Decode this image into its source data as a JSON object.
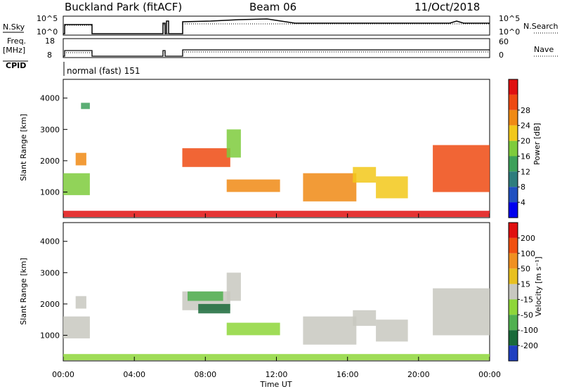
{
  "header": {
    "station": "Buckland Park (fitACF)",
    "beam": "Beam 06",
    "date": "11/Oct/2018"
  },
  "top_panels": {
    "nsky": {
      "left_label": "N.Sky",
      "left_ticks": [
        "10^5",
        "10^0"
      ],
      "right_ticks": [
        "10^5",
        "10^0"
      ],
      "right_label": "N.Search"
    },
    "freq": {
      "left_label_line1": "Freq.",
      "left_label_line2": "[MHz]",
      "left_ticks": [
        "18",
        "8"
      ],
      "right_ticks": [
        "60",
        "0"
      ],
      "right_label": "Nave"
    },
    "cpid": {
      "label": "CPID",
      "mode": "normal (fast) 151"
    }
  },
  "colors": {
    "power_scale": [
      "#0000ee",
      "#2050c0",
      "#2e7d7d",
      "#3da05a",
      "#7ecb3c",
      "#f2c81a",
      "#f08a14",
      "#ee4a12",
      "#e01010"
    ],
    "velocity_scale": [
      "#2040c0",
      "#1a6a3a",
      "#50b050",
      "#8ed63a",
      "#c8c8c0",
      "#e8c020",
      "#f09020",
      "#f05010",
      "#e01010"
    ]
  },
  "chart_data": [
    {
      "type": "heatmap",
      "name_label": "power-panel",
      "xlabel": "",
      "ylabel": "Slant Range [km]",
      "y_ticks": [
        "1000",
        "2000",
        "3000",
        "4000"
      ],
      "ylim": [
        180,
        4600
      ],
      "colorbar_label": "Power [dB]",
      "colorbar_ticks": [
        "4",
        "8",
        "12",
        "16",
        "20",
        "24",
        "28"
      ],
      "regions": [
        {
          "t0": 0.0,
          "t1": 1.5,
          "r0": 900,
          "r1": 1600,
          "level": 4
        },
        {
          "t0": 0.7,
          "t1": 1.3,
          "r0": 1850,
          "r1": 2250,
          "level": 6
        },
        {
          "t0": 1.0,
          "t1": 1.5,
          "r0": 3650,
          "r1": 3850,
          "level": 3
        },
        {
          "t0": 6.7,
          "t1": 9.4,
          "r0": 1800,
          "r1": 2400,
          "level": 7
        },
        {
          "t0": 9.2,
          "t1": 10.0,
          "r0": 2100,
          "r1": 3000,
          "level": 4
        },
        {
          "t0": 9.2,
          "t1": 12.2,
          "r0": 1000,
          "r1": 1400,
          "level": 6
        },
        {
          "t0": 13.5,
          "t1": 16.5,
          "r0": 700,
          "r1": 1600,
          "level": 6
        },
        {
          "t0": 16.3,
          "t1": 17.6,
          "r0": 1300,
          "r1": 1800,
          "level": 5
        },
        {
          "t0": 17.6,
          "t1": 19.4,
          "r0": 800,
          "r1": 1500,
          "level": 5
        },
        {
          "t0": 20.8,
          "t1": 24.0,
          "r0": 1000,
          "r1": 2500,
          "level": 7
        },
        {
          "t0": 0.0,
          "t1": 24.0,
          "r0": 200,
          "r1": 400,
          "level": 8
        }
      ]
    },
    {
      "type": "heatmap",
      "name_label": "velocity-panel",
      "xlabel": "Time UT",
      "ylabel": "Slant Range [km]",
      "y_ticks": [
        "1000",
        "2000",
        "3000",
        "4000"
      ],
      "ylim": [
        180,
        4600
      ],
      "x_ticks": [
        "00:00",
        "04:00",
        "08:00",
        "12:00",
        "16:00",
        "20:00",
        "00:00"
      ],
      "colorbar_label": "Velocity [m s⁻¹]",
      "colorbar_ticks": [
        "200",
        "100",
        "50",
        "15",
        "-15",
        "-50",
        "-100",
        "-200"
      ],
      "regions": [
        {
          "t0": 0.0,
          "t1": 1.5,
          "r0": 900,
          "r1": 1600,
          "level": 4
        },
        {
          "t0": 0.7,
          "t1": 1.3,
          "r0": 1850,
          "r1": 2250,
          "level": 4
        },
        {
          "t0": 6.7,
          "t1": 9.4,
          "r0": 1800,
          "r1": 2400,
          "level": 4
        },
        {
          "t0": 7.0,
          "t1": 9.0,
          "r0": 2100,
          "r1": 2400,
          "level": 2
        },
        {
          "t0": 7.6,
          "t1": 9.4,
          "r0": 1700,
          "r1": 2000,
          "level": 1
        },
        {
          "t0": 9.2,
          "t1": 10.0,
          "r0": 2100,
          "r1": 3000,
          "level": 4
        },
        {
          "t0": 9.2,
          "t1": 12.2,
          "r0": 1000,
          "r1": 1400,
          "level": 3
        },
        {
          "t0": 13.5,
          "t1": 16.5,
          "r0": 700,
          "r1": 1600,
          "level": 4
        },
        {
          "t0": 16.3,
          "t1": 17.6,
          "r0": 1300,
          "r1": 1800,
          "level": 4
        },
        {
          "t0": 17.6,
          "t1": 19.4,
          "r0": 800,
          "r1": 1500,
          "level": 4
        },
        {
          "t0": 20.8,
          "t1": 24.0,
          "r0": 1000,
          "r1": 2500,
          "level": 4
        },
        {
          "t0": 0.0,
          "t1": 24.0,
          "r0": 200,
          "r1": 400,
          "level": 3
        }
      ]
    }
  ]
}
